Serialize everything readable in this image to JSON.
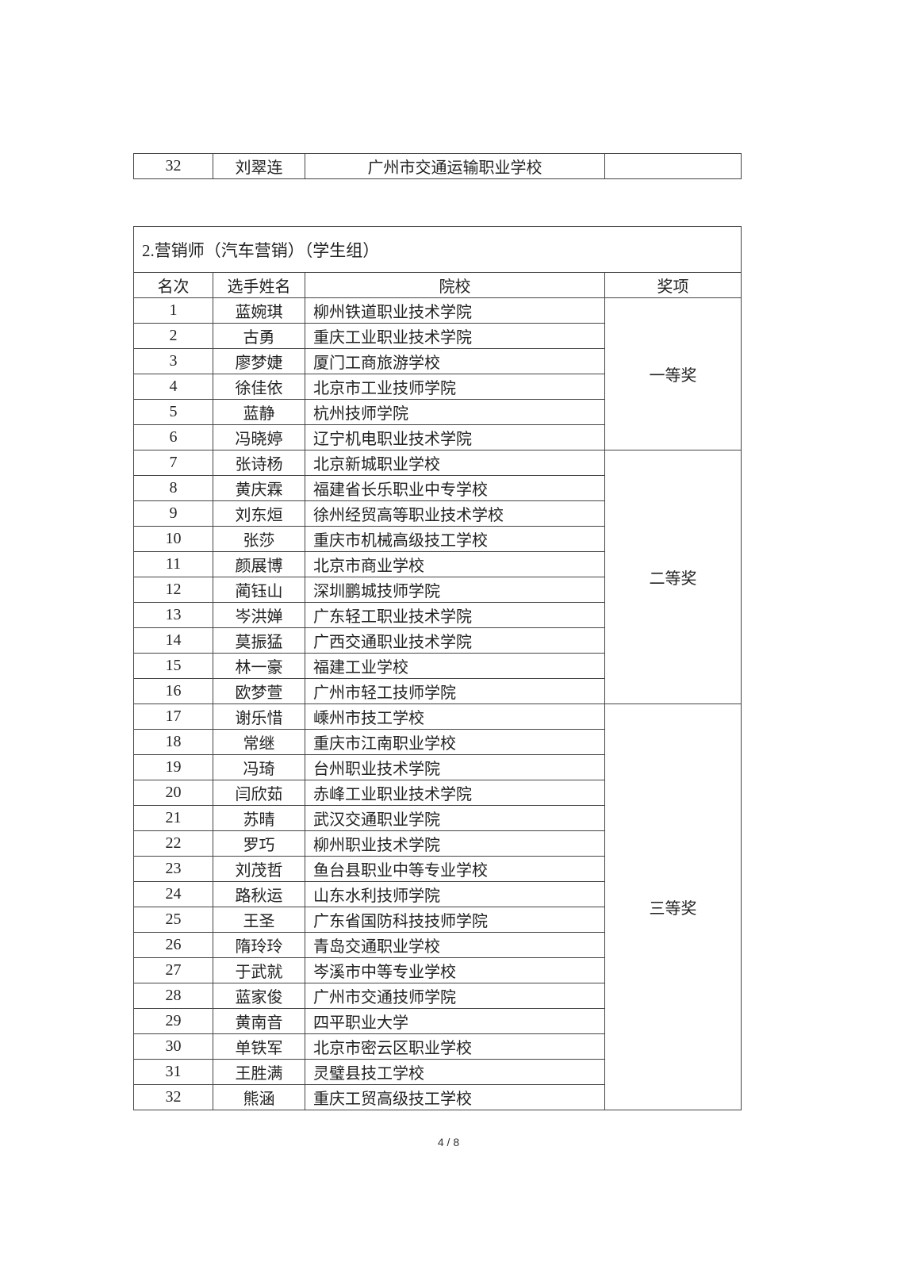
{
  "prev_table": {
    "rank": "32",
    "name": "刘翠连",
    "school": "广州市交通运输职业学校",
    "award": ""
  },
  "section": {
    "title": "2.营销师（汽车营销）（学生组）",
    "headers": [
      "名次",
      "选手姓名",
      "院校",
      "奖项"
    ],
    "awards": [
      "一等奖",
      "二等奖",
      "三等奖"
    ],
    "rows": [
      {
        "rank": "1",
        "name": "蓝婉琪",
        "school": "柳州铁道职业技术学院"
      },
      {
        "rank": "2",
        "name": "古勇",
        "school": "重庆工业职业技术学院"
      },
      {
        "rank": "3",
        "name": "廖梦婕",
        "school": "厦门工商旅游学校"
      },
      {
        "rank": "4",
        "name": "徐佳依",
        "school": "北京市工业技师学院"
      },
      {
        "rank": "5",
        "name": "蓝静",
        "school": "杭州技师学院"
      },
      {
        "rank": "6",
        "name": "冯晓婷",
        "school": "辽宁机电职业技术学院"
      },
      {
        "rank": "7",
        "name": "张诗杨",
        "school": "北京新城职业学校"
      },
      {
        "rank": "8",
        "name": "黄庆霖",
        "school": "福建省长乐职业中专学校"
      },
      {
        "rank": "9",
        "name": "刘东烜",
        "school": "徐州经贸高等职业技术学校"
      },
      {
        "rank": "10",
        "name": "张莎",
        "school": "重庆市机械高级技工学校"
      },
      {
        "rank": "11",
        "name": "颜展博",
        "school": "北京市商业学校"
      },
      {
        "rank": "12",
        "name": "蔺钰山",
        "school": "深圳鹏城技师学院"
      },
      {
        "rank": "13",
        "name": "岑洪婵",
        "school": "广东轻工职业技术学院"
      },
      {
        "rank": "14",
        "name": "莫振猛",
        "school": "广西交通职业技术学院"
      },
      {
        "rank": "15",
        "name": "林一豪",
        "school": "福建工业学校"
      },
      {
        "rank": "16",
        "name": "欧梦萱",
        "school": "广州市轻工技师学院"
      },
      {
        "rank": "17",
        "name": "谢乐惜",
        "school": "嵊州市技工学校"
      },
      {
        "rank": "18",
        "name": "常继",
        "school": "重庆市江南职业学校"
      },
      {
        "rank": "19",
        "name": "冯琦",
        "school": "台州职业技术学院"
      },
      {
        "rank": "20",
        "name": "闫欣茹",
        "school": "赤峰工业职业技术学院"
      },
      {
        "rank": "21",
        "name": "苏晴",
        "school": "武汉交通职业学院"
      },
      {
        "rank": "22",
        "name": "罗巧",
        "school": "柳州职业技术学院"
      },
      {
        "rank": "23",
        "name": "刘茂哲",
        "school": "鱼台县职业中等专业学校"
      },
      {
        "rank": "24",
        "name": "路秋运",
        "school": "山东水利技师学院"
      },
      {
        "rank": "25",
        "name": "王圣",
        "school": "广东省国防科技技师学院"
      },
      {
        "rank": "26",
        "name": "隋玲玲",
        "school": "青岛交通职业学校"
      },
      {
        "rank": "27",
        "name": "于武就",
        "school": "岑溪市中等专业学校"
      },
      {
        "rank": "28",
        "name": "蓝家俊",
        "school": "广州市交通技师学院"
      },
      {
        "rank": "29",
        "name": "黄南音",
        "school": "四平职业大学"
      },
      {
        "rank": "30",
        "name": "单铁军",
        "school": "北京市密云区职业学校"
      },
      {
        "rank": "31",
        "name": "王胜满",
        "school": "灵璧县技工学校"
      },
      {
        "rank": "32",
        "name": "熊涵",
        "school": "重庆工贸高级技工学校"
      }
    ]
  },
  "footer": {
    "page": "4 / 8"
  }
}
